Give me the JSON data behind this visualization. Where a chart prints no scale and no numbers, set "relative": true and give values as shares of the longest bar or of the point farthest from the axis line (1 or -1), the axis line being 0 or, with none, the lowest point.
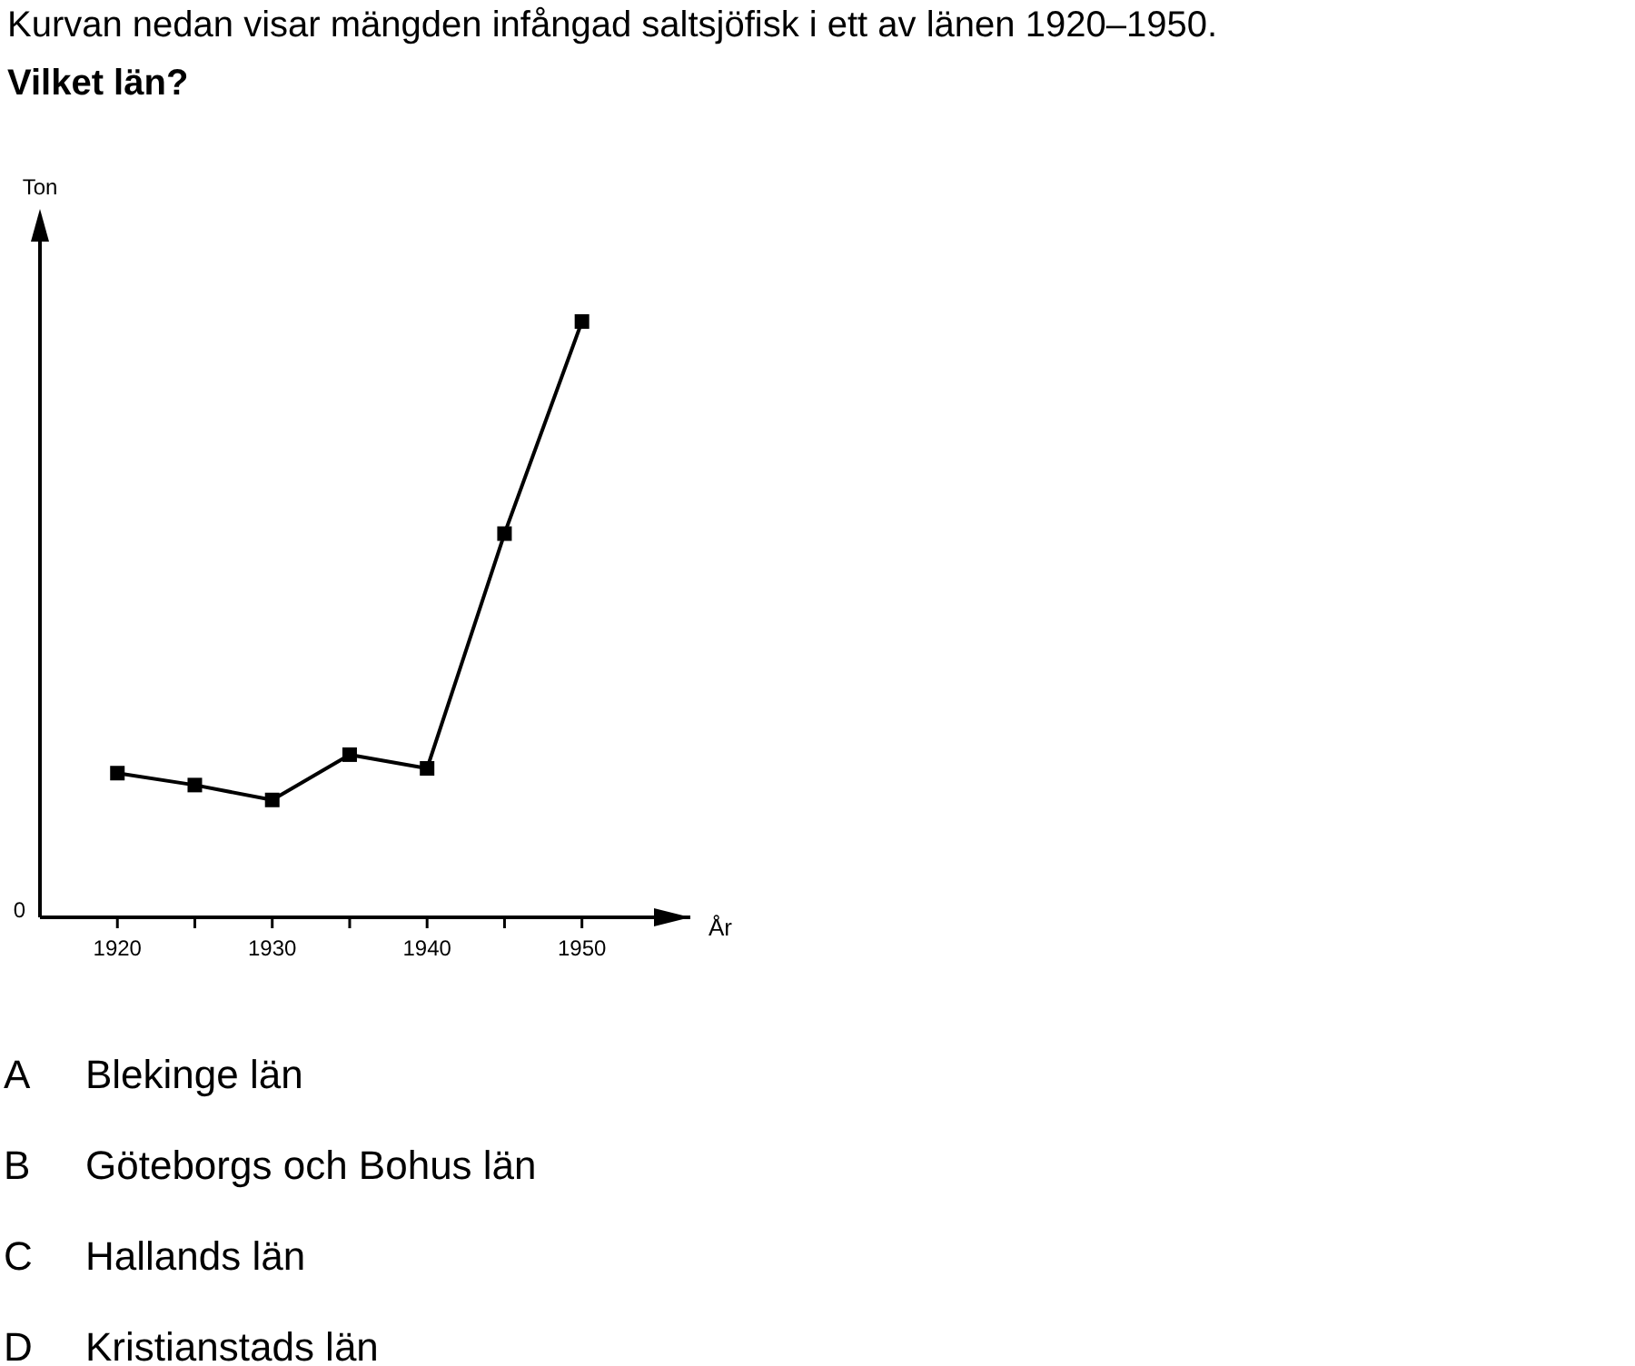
{
  "chart_data": {
    "type": "line",
    "title": "Kurvan nedan visar mängden infångad saltsjöfisk i ett av länen 1920–1950.",
    "subtitle": "Vilket län?",
    "xlabel": "År",
    "relative": true,
    "x": [
      1920,
      1925,
      1930,
      1935,
      1940,
      1945,
      1950
    ],
    "series": [
      {
        "color": "#000000",
        "values": [
          0.242,
          0.222,
          0.197,
          0.273,
          0.25,
          0.644,
          1
        ]
      }
    ],
    "xlim": [
      1915,
      1957
    ],
    "xticks": [
      1920,
      {
        "value": 1925,
        "label": null
      },
      1930,
      {
        "value": 1935,
        "label": null
      },
      1940,
      {
        "value": 1945,
        "label": null
      },
      1950
    ],
    "marker": "square",
    "line_style": "solid",
    "annotations": [
      "Ton",
      "0",
      "A",
      "Blekinge län",
      "B",
      "Göteborgs och Bohus län",
      "C",
      "Hallands län",
      "D",
      "Kristianstads län"
    ]
  }
}
